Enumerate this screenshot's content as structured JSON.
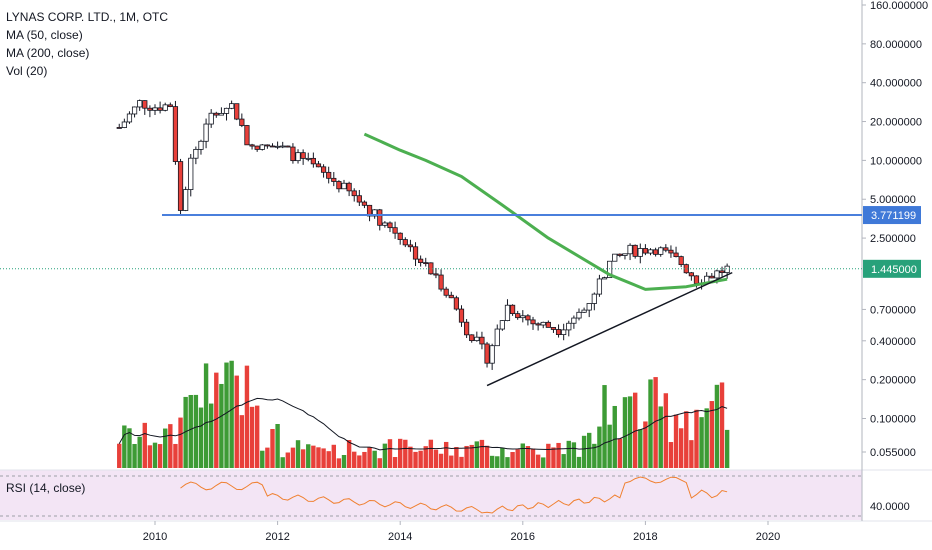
{
  "legend": {
    "title": "LYNAS CORP. LTD., 1M, OTC",
    "ma50": "MA (50, close)",
    "ma200": "MA (200, close)",
    "vol": "Vol (20)"
  },
  "rsi_label": "RSI (14, close)",
  "colors": {
    "up": "#3d9b35",
    "down": "#e8403a",
    "ma": "#4caf50",
    "hline": "#4a7fdc",
    "trend": "#131722",
    "rsi": "#f08030",
    "rsi_bg": "#f3e5f5",
    "price_badge": "#27a17a",
    "hline_badge": "#3f79d8"
  },
  "chart_data": {
    "type": "candlestick",
    "x_tick_labels": [
      "2010",
      "2012",
      "2014",
      "2016",
      "2018",
      "2020"
    ],
    "y_tick_labels": [
      "160.000000",
      "80.000000",
      "40.000000",
      "20.000000",
      "10.000000",
      "5.000000",
      "2.500000",
      "0.700000",
      "0.400000",
      "0.200000",
      "0.100000",
      "0.055000"
    ],
    "y_scale": "log",
    "current_price_label": "1.445000",
    "horizontal_level_label": "3.771199",
    "horizontal_level": 3.771199,
    "current_price": 1.445,
    "rsi_tick_label": "40.0000",
    "price_points": [
      {
        "date": "2009-06",
        "close": 18.0
      },
      {
        "date": "2009-10",
        "close": 28.0
      },
      {
        "date": "2010-01",
        "close": 26.0
      },
      {
        "date": "2010-04",
        "close": 27.0
      },
      {
        "date": "2010-06",
        "close": 4.0
      },
      {
        "date": "2010-08",
        "close": 10.0
      },
      {
        "date": "2010-12",
        "close": 22.0
      },
      {
        "date": "2011-04",
        "close": 27.0
      },
      {
        "date": "2011-08",
        "close": 12.0
      },
      {
        "date": "2012-01",
        "close": 13.0
      },
      {
        "date": "2012-06",
        "close": 10.0
      },
      {
        "date": "2013-01",
        "close": 6.5
      },
      {
        "date": "2013-06",
        "close": 4.5
      },
      {
        "date": "2013-09",
        "close": 3.5
      },
      {
        "date": "2014-01",
        "close": 2.6
      },
      {
        "date": "2014-06",
        "close": 1.5
      },
      {
        "date": "2014-10",
        "close": 1.0
      },
      {
        "date": "2015-02",
        "close": 0.5
      },
      {
        "date": "2015-06",
        "close": 0.3
      },
      {
        "date": "2015-10",
        "close": 0.75
      },
      {
        "date": "2016-03",
        "close": 0.55
      },
      {
        "date": "2016-08",
        "close": 0.5
      },
      {
        "date": "2017-01",
        "close": 0.7
      },
      {
        "date": "2017-06",
        "close": 1.6
      },
      {
        "date": "2017-10",
        "close": 2.0
      },
      {
        "date": "2018-03",
        "close": 2.1
      },
      {
        "date": "2018-08",
        "close": 1.6
      },
      {
        "date": "2018-11",
        "close": 1.2
      },
      {
        "date": "2019-02",
        "close": 1.3
      },
      {
        "date": "2019-05",
        "close": 1.445
      }
    ],
    "ma200_points": [
      {
        "date": "2013-06",
        "value": 16.0
      },
      {
        "date": "2014-01",
        "value": 12.0
      },
      {
        "date": "2014-06",
        "value": 10.0
      },
      {
        "date": "2015-01",
        "value": 7.5
      },
      {
        "date": "2015-09",
        "value": 4.5
      },
      {
        "date": "2016-06",
        "value": 2.5
      },
      {
        "date": "2017-06",
        "value": 1.3
      },
      {
        "date": "2018-01",
        "value": 1.0
      },
      {
        "date": "2018-09",
        "value": 1.05
      },
      {
        "date": "2019-05",
        "value": 1.2
      }
    ],
    "trendline": [
      {
        "date": "2015-06",
        "value": 0.18
      },
      {
        "date": "2019-06",
        "value": 1.35
      }
    ],
    "volume_peaks": [
      {
        "date": "2010-12",
        "value": "high"
      },
      {
        "date": "2017-10",
        "value": "high"
      },
      {
        "date": "2018-08",
        "value": "high"
      }
    ]
  }
}
